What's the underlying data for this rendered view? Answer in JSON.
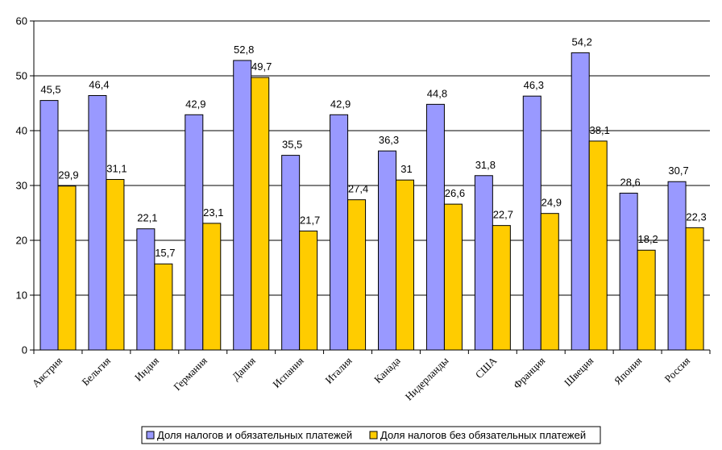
{
  "chart_data": {
    "type": "bar",
    "title": "",
    "xlabel": "",
    "ylabel": "",
    "ylim": [
      0,
      60
    ],
    "yticks": [
      0,
      10,
      20,
      30,
      40,
      50,
      60
    ],
    "grid": true,
    "legend_position": "bottom-center",
    "categories": [
      "Австрия",
      "Бельгия",
      "Индия",
      "Германия",
      "Дания",
      "Испания",
      "Италия",
      "Канада",
      "Нидерланды",
      "США",
      "Франция",
      "Швеция",
      "Япония",
      "Россия"
    ],
    "series": [
      {
        "name": "Доля налогов и обязательных платежей",
        "color": "#9999ff",
        "values": [
          45.5,
          46.4,
          22.1,
          42.9,
          52.8,
          35.5,
          42.9,
          36.3,
          44.8,
          31.8,
          46.3,
          54.2,
          28.6,
          30.7
        ],
        "labels": [
          "45,5",
          "46,4",
          "22,1",
          "42,9",
          "52,8",
          "35,5",
          "42,9",
          "36,3",
          "44,8",
          "31,8",
          "46,3",
          "54,2",
          "28,6",
          "30,7"
        ]
      },
      {
        "name": "Доля налогов без обязательных платежей",
        "color": "#ffcc00",
        "values": [
          29.9,
          31.1,
          15.7,
          23.1,
          49.7,
          21.7,
          27.4,
          31,
          26.6,
          22.7,
          24.9,
          38.1,
          18.2,
          22.3
        ],
        "labels": [
          "29,9",
          "31,1",
          "15,7",
          "23,1",
          "49,7",
          "21,7",
          "27,4",
          "31",
          "26,6",
          "22,7",
          "24,9",
          "38,1",
          "18,2",
          "22,3"
        ]
      }
    ]
  }
}
